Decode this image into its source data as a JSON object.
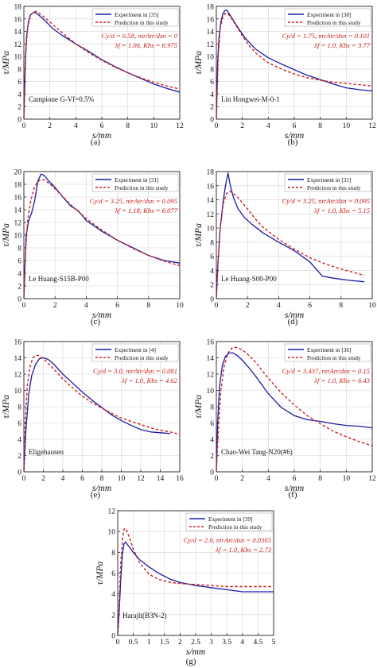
{
  "chart_data": [
    {
      "type": "line",
      "caption": "(a)",
      "ylabel": "τ/MPa",
      "xlabel": "s/mm",
      "xlim": [
        0,
        12
      ],
      "ylim": [
        0,
        18
      ],
      "xticks": [
        0,
        2,
        4,
        6,
        8,
        10,
        12
      ],
      "yticks": [
        0,
        2,
        4,
        6,
        8,
        10,
        12,
        14,
        16,
        18
      ],
      "grid": true,
      "legend_position": "top-right",
      "specimen_label": "Campione G-Vf=0.5%",
      "parameters": [
        "Cy/d = 6.58, ntrAtr/dsn = 0",
        "λf = 1.06, Kbs = 6.975"
      ],
      "series": [
        {
          "name": "Experiment in [35]",
          "style": "solid",
          "color": "#1a1aa6",
          "x": [
            0,
            0.1,
            0.2,
            0.35,
            0.5,
            0.7,
            0.9,
            1.2,
            1.6,
            2.2,
            3,
            4,
            5,
            6,
            7,
            8,
            9,
            10,
            11,
            12
          ],
          "y": [
            0,
            8,
            13,
            15.5,
            16.6,
            17,
            17,
            16.5,
            15.8,
            14.5,
            13.3,
            12,
            10.8,
            9.5,
            8.4,
            7.4,
            6.5,
            5.6,
            4.9,
            4.3
          ]
        },
        {
          "name": "Prediction in this study",
          "style": "dashed",
          "color": "#cc2222",
          "x": [
            0,
            0.15,
            0.3,
            0.5,
            0.7,
            0.9,
            1.1,
            1.5,
            2,
            3,
            4,
            5,
            6,
            7,
            8,
            9,
            10,
            11,
            12
          ],
          "y": [
            0,
            11,
            14.8,
            16.4,
            17.1,
            17.2,
            17,
            16.4,
            15.5,
            13.7,
            12,
            10.6,
            9.4,
            8.3,
            7.4,
            6.6,
            5.9,
            5.3,
            4.8
          ]
        }
      ]
    },
    {
      "type": "line",
      "caption": "(b)",
      "ylabel": "τ/MPa",
      "xlabel": "s/mm",
      "xlim": [
        0,
        12
      ],
      "ylim": [
        0,
        18
      ],
      "xticks": [
        0,
        2,
        4,
        6,
        8,
        10,
        12
      ],
      "yticks": [
        0,
        2,
        4,
        6,
        8,
        10,
        12,
        14,
        16,
        18
      ],
      "grid": true,
      "legend_position": "top-right",
      "specimen_label": "Lin Hongwei-M-0-1",
      "parameters": [
        "Cy/d = 1.75, ntrAtr/dsn = 0.101",
        "λf = 1.0, Kbs = 3.77"
      ],
      "series": [
        {
          "name": "Experiment in [38]",
          "style": "solid",
          "color": "#1a1aa6",
          "x": [
            0,
            0.1,
            0.2,
            0.35,
            0.5,
            0.65,
            0.8,
            1,
            1.3,
            1.7,
            2.2,
            3,
            4,
            5,
            6,
            7,
            8,
            9,
            10,
            11,
            12
          ],
          "y": [
            0,
            9,
            13,
            15.5,
            16.8,
            17.3,
            17.4,
            16.8,
            15.8,
            14.5,
            13,
            11.2,
            9.8,
            8.8,
            7.9,
            7,
            6.3,
            5.6,
            5,
            4.7,
            4.5
          ]
        },
        {
          "name": "Prediction in this study",
          "style": "dashed",
          "color": "#cc2222",
          "x": [
            0,
            0.15,
            0.3,
            0.5,
            0.7,
            0.9,
            1.1,
            1.5,
            2,
            2.5,
            3,
            4,
            5,
            6,
            7,
            8,
            9,
            10,
            11,
            12
          ],
          "y": [
            0,
            10,
            14.5,
            16.3,
            16.9,
            16.8,
            16.3,
            15,
            13.3,
            11.8,
            10.6,
            9,
            8,
            7.2,
            6.6,
            6.2,
            5.9,
            5.7,
            5.5,
            5.3
          ]
        }
      ]
    },
    {
      "type": "line",
      "caption": "(c)",
      "ylabel": "τ/MPa",
      "xlabel": "s/mm",
      "xlim": [
        0,
        10
      ],
      "ylim": [
        0,
        20
      ],
      "xticks": [
        0,
        2,
        4,
        6,
        8,
        10
      ],
      "yticks": [
        0,
        2,
        4,
        6,
        8,
        10,
        12,
        14,
        16,
        18,
        20
      ],
      "grid": true,
      "legend_position": "top-right",
      "specimen_label": "Le Huang-S15B-P00",
      "parameters": [
        "Cy/d = 3.25, ntrAtr/dsn = 0.095",
        "λf = 1.18, Kbs = 6.077"
      ],
      "series": [
        {
          "name": "Experiment in [31]",
          "style": "solid",
          "color": "#1a1aa6",
          "x": [
            0,
            0.05,
            0.15,
            0.3,
            0.5,
            0.7,
            0.9,
            1.1,
            1.3,
            1.6,
            2,
            2.5,
            3,
            3.5,
            4,
            5,
            6,
            7,
            8,
            9,
            10
          ],
          "y": [
            0,
            4,
            10,
            12.2,
            13.5,
            15.5,
            18.5,
            19.6,
            19.4,
            18.5,
            17.5,
            16,
            14.6,
            13.8,
            12.3,
            10.6,
            9.2,
            8,
            6.8,
            6,
            5.6
          ]
        },
        {
          "name": "Prediction in this study",
          "style": "dashed",
          "color": "#cc2222",
          "x": [
            0,
            0.1,
            0.25,
            0.45,
            0.65,
            0.85,
            1.05,
            1.3,
            1.7,
            2.2,
            3,
            4,
            5,
            6,
            7,
            8,
            9,
            10
          ],
          "y": [
            0,
            7,
            12.5,
            15.5,
            17.3,
            18.3,
            18.7,
            18.7,
            18,
            16.8,
            14.8,
            12.6,
            10.8,
            9.2,
            7.9,
            6.8,
            5.9,
            5.2
          ]
        }
      ]
    },
    {
      "type": "line",
      "caption": "(d)",
      "ylabel": "τ/MPa",
      "xlabel": "s/mm",
      "xlim": [
        0,
        10
      ],
      "ylim": [
        0,
        18
      ],
      "xticks": [
        0,
        2,
        4,
        6,
        8,
        10
      ],
      "yticks": [
        0,
        2,
        4,
        6,
        8,
        10,
        12,
        14,
        16,
        18
      ],
      "grid": true,
      "legend_position": "top-right",
      "specimen_label": "Le Huang-S00-P00",
      "parameters": [
        "Cy/d = 3.25, ntrAtr/dsn = 0.095",
        "λf = 1.0, Kbs = 5.15"
      ],
      "series": [
        {
          "name": "Experiment in [31]",
          "style": "solid",
          "color": "#1a1aa6",
          "x": [
            0,
            0.1,
            0.25,
            0.45,
            0.6,
            0.75,
            0.9,
            1.1,
            1.4,
            1.8,
            2.3,
            3,
            4,
            5,
            6,
            6.8,
            7.5,
            8.5,
            9.5
          ],
          "y": [
            0,
            5,
            10,
            14,
            16.2,
            17.8,
            16,
            14.3,
            12.7,
            11.5,
            10.5,
            9.3,
            8,
            6.8,
            5.2,
            3.2,
            2.9,
            2.6,
            2.4
          ]
        },
        {
          "name": "Prediction in this study",
          "style": "dashed",
          "color": "#cc2222",
          "x": [
            0,
            0.1,
            0.25,
            0.45,
            0.65,
            0.85,
            1.05,
            1.4,
            2,
            2.5,
            3,
            4,
            5,
            6,
            7,
            8,
            9,
            9.5
          ],
          "y": [
            0,
            5,
            10,
            13.5,
            14.9,
            15.2,
            15,
            14.3,
            12.7,
            11.3,
            10.1,
            8.4,
            7,
            5.8,
            4.9,
            4.2,
            3.6,
            3.3
          ]
        }
      ]
    },
    {
      "type": "line",
      "caption": "(e)",
      "ylabel": "τ/MPa",
      "xlabel": "s/mm",
      "xlim": [
        0,
        16
      ],
      "ylim": [
        0,
        16
      ],
      "xticks": [
        0,
        2,
        4,
        6,
        8,
        10,
        12,
        14,
        16
      ],
      "yticks": [
        0,
        2,
        4,
        6,
        8,
        10,
        12,
        14,
        16
      ],
      "grid": true,
      "legend_position": "top-right",
      "specimen_label": "Eligehausen",
      "parameters": [
        "Cy/d = 3.0, ntrAtr/dsn = 0.081",
        "λf = 1.0, Kbs = 4.62"
      ],
      "series": [
        {
          "name": "Experiment in [4]",
          "style": "solid",
          "color": "#1a1aa6",
          "x": [
            0,
            0.2,
            0.5,
            0.8,
            1.2,
            1.6,
            2,
            2.5,
            3,
            4,
            5,
            6,
            7,
            8,
            9,
            10,
            11,
            12,
            13,
            14,
            15
          ],
          "y": [
            0,
            5,
            9.5,
            11.8,
            13.2,
            13.9,
            14,
            13.8,
            13.3,
            12,
            10.9,
            9.8,
            8.8,
            7.9,
            7,
            6.3,
            5.7,
            5.2,
            4.9,
            4.8,
            4.7
          ]
        },
        {
          "name": "Prediction in this study",
          "style": "dashed",
          "color": "#cc2222",
          "x": [
            0,
            0.15,
            0.35,
            0.6,
            0.9,
            1.2,
            1.5,
            2,
            3,
            4,
            5,
            6,
            7,
            8,
            9,
            10,
            11,
            12,
            13,
            14,
            15,
            16
          ],
          "y": [
            0,
            6,
            10.5,
            12.8,
            13.9,
            14.3,
            14.3,
            13.9,
            12.7,
            11.4,
            10.3,
            9.3,
            8.5,
            7.8,
            7.2,
            6.6,
            6.2,
            5.8,
            5.4,
            5.1,
            4.9,
            4.6
          ]
        }
      ]
    },
    {
      "type": "line",
      "caption": "(f)",
      "ylabel": "τ/MPa",
      "xlabel": "s/mm",
      "xlim": [
        0,
        12
      ],
      "ylim": [
        0,
        16
      ],
      "xticks": [
        0,
        2,
        4,
        6,
        8,
        10,
        12
      ],
      "yticks": [
        0,
        2,
        4,
        6,
        8,
        10,
        12,
        14,
        16
      ],
      "grid": true,
      "legend_position": "top-right",
      "specimen_label": "Chao-Wei Tang-N20(#6)",
      "parameters": [
        "Cy/d = 3.437, ntrAtr/dsn = 0.15",
        "λf = 1.0, Kbs = 6.43"
      ],
      "series": [
        {
          "name": "Experiment in [36]",
          "style": "solid",
          "color": "#1a1aa6",
          "x": [
            0,
            0.1,
            0.25,
            0.45,
            0.7,
            1,
            1.3,
            1.6,
            2,
            2.5,
            3,
            4,
            5,
            6,
            7,
            8,
            9,
            10,
            11,
            12
          ],
          "y": [
            0,
            6,
            10.5,
            13,
            14.2,
            14.6,
            14.6,
            14.3,
            13.7,
            12.8,
            11.8,
            9.6,
            7.9,
            6.9,
            6.4,
            6.2,
            5.9,
            5.7,
            5.6,
            5.4
          ]
        },
        {
          "name": "Prediction in this study",
          "style": "dashed",
          "color": "#cc2222",
          "x": [
            0,
            0.15,
            0.35,
            0.6,
            0.9,
            1.2,
            1.5,
            2,
            2.5,
            3,
            4,
            5,
            6,
            7,
            8,
            9,
            10,
            11,
            12
          ],
          "y": [
            0,
            5,
            10,
            13,
            14.6,
            15.2,
            15.3,
            15,
            14.3,
            13.5,
            11.5,
            9.7,
            8.2,
            6.9,
            5.9,
            5,
            4.3,
            3.7,
            3.2
          ]
        }
      ]
    },
    {
      "type": "line",
      "caption": "(g)",
      "ylabel": "τ/MPa",
      "xlabel": "s/mm",
      "xlim": [
        0,
        5
      ],
      "ylim": [
        0,
        12
      ],
      "xticks": [
        0,
        0.5,
        1,
        1.5,
        2,
        2.5,
        3,
        3.5,
        4,
        4.5,
        5
      ],
      "yticks": [
        0,
        2,
        4,
        6,
        8,
        10,
        12
      ],
      "grid": true,
      "legend_position": "top-right",
      "specimen_label": "Harajli(B3N-2)",
      "parameters": [
        "Cy/d = 2.0, ntrAtr/dsn = 0.0365",
        "λf = 1.0, Kbs = 2.73"
      ],
      "series": [
        {
          "name": "Experiment in [39]",
          "style": "solid",
          "color": "#1a1aa6",
          "x": [
            0,
            0.05,
            0.1,
            0.15,
            0.2,
            0.25,
            0.3,
            0.4,
            0.5,
            0.7,
            1,
            1.3,
            1.7,
            2,
            2.5,
            3,
            3.5,
            4,
            4.5,
            5
          ],
          "y": [
            0,
            2.5,
            5.5,
            7.8,
            8.8,
            9,
            8.8,
            8.4,
            8,
            7.3,
            6.6,
            6,
            5.4,
            5.1,
            4.8,
            4.6,
            4.4,
            4.2,
            4.2,
            4.2
          ]
        },
        {
          "name": "Prediction in this study",
          "style": "dashed",
          "color": "#cc2222",
          "x": [
            0,
            0.05,
            0.1,
            0.15,
            0.2,
            0.25,
            0.3,
            0.4,
            0.5,
            0.7,
            1,
            1.3,
            1.7,
            2,
            2.5,
            3,
            3.5,
            4,
            4.5,
            5
          ],
          "y": [
            0,
            3.5,
            7,
            9.2,
            10.2,
            10.3,
            10,
            9.2,
            8.3,
            7,
            5.9,
            5.4,
            5.1,
            5,
            4.9,
            4.8,
            4.7,
            4.7,
            4.7,
            4.7
          ]
        }
      ]
    }
  ]
}
